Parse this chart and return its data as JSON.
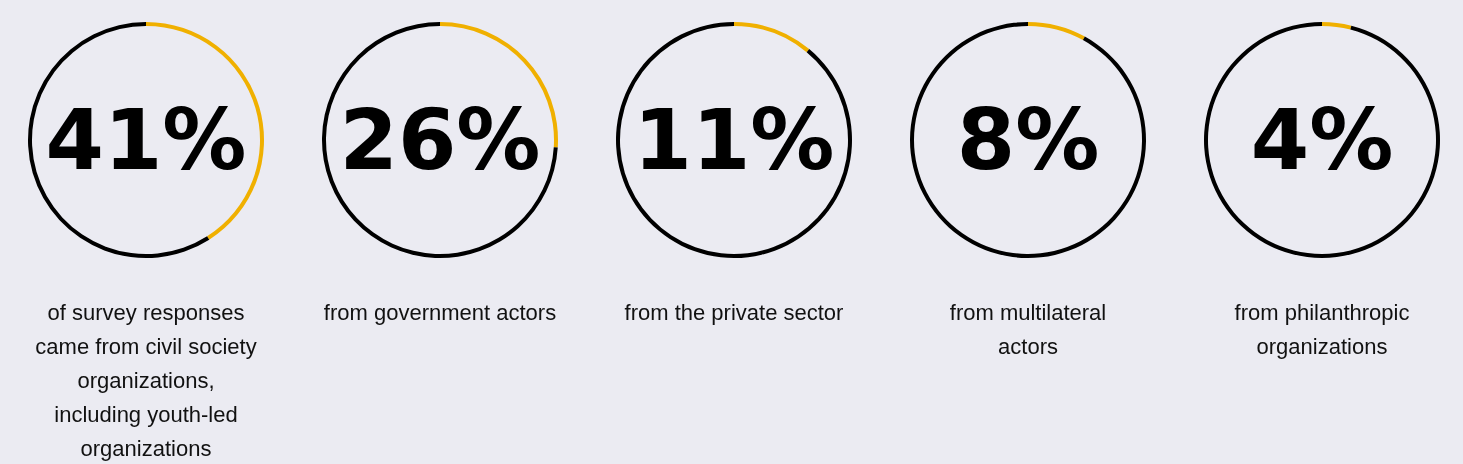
{
  "chart_data": [
    {
      "type": "donut",
      "title": "41%",
      "categories": [
        null,
        null
      ],
      "values": [
        41,
        59
      ],
      "colors": [
        "#f0b000",
        "#000000"
      ],
      "annotations": [
        "of survey responses came from civil society organizations, including youth-led organizations"
      ]
    },
    {
      "type": "donut",
      "title": "26%",
      "categories": [
        null,
        null
      ],
      "values": [
        26,
        74
      ],
      "colors": [
        "#f0b000",
        "#000000"
      ],
      "annotations": [
        "from government actors"
      ]
    },
    {
      "type": "donut",
      "title": "11%",
      "categories": [
        null,
        null
      ],
      "values": [
        11,
        89
      ],
      "colors": [
        "#f0b000",
        "#000000"
      ],
      "annotations": [
        "from the private sector"
      ]
    },
    {
      "type": "donut",
      "title": "8%",
      "categories": [
        null,
        null
      ],
      "values": [
        8,
        92
      ],
      "colors": [
        "#f0b000",
        "#000000"
      ],
      "annotations": [
        "from multilateral actors"
      ]
    },
    {
      "type": "donut",
      "title": "4%",
      "categories": [
        null,
        null
      ],
      "values": [
        4,
        96
      ],
      "colors": [
        "#f0b000",
        "#000000"
      ],
      "annotations": [
        "from philanthropic organizations"
      ]
    }
  ]
}
